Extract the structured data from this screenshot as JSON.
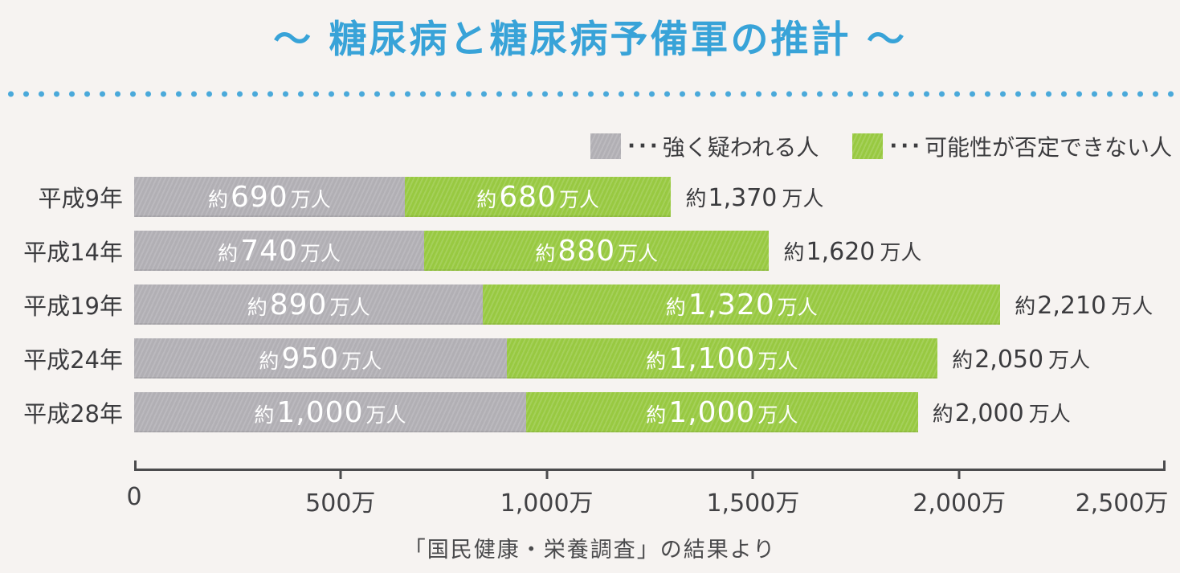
{
  "page": {
    "title": "～ 糖尿病と糖尿病予備軍の推計 ～",
    "title_color": "#38a3d8",
    "divider_dot_color": "#4aa9da",
    "background": "#f6f3f1"
  },
  "legend": [
    {
      "dots": "···",
      "label": "強く疑われる人",
      "color": "#b1afb4"
    },
    {
      "dots": "···",
      "label": "可能性が否定できない人",
      "color": "#98c941"
    }
  ],
  "chart_data": {
    "type": "bar",
    "orientation": "horizontal",
    "stacked": true,
    "title": "糖尿病と糖尿病予備軍の推計",
    "categories": [
      "平成9年",
      "平成14年",
      "平成19年",
      "平成24年",
      "平成28年"
    ],
    "series": [
      {
        "name": "強く疑われる人",
        "color": "#b1afb4",
        "values": [
          690,
          740,
          890,
          950,
          1000
        ]
      },
      {
        "name": "可能性が否定できない人",
        "color": "#98c941",
        "values": [
          680,
          880,
          1320,
          1100,
          1000
        ]
      }
    ],
    "totals": [
      1370,
      1620,
      2210,
      2050,
      2000
    ],
    "unit": "万人",
    "xlim": [
      0,
      2500
    ],
    "x_ticks": [
      "0",
      "500万",
      "1,000万",
      "1,500万",
      "2,000万",
      "2,500万"
    ],
    "grid": false,
    "legend_position": "top-right",
    "source": "「国民健康・栄養調査」の結果より",
    "rows": [
      {
        "year": "平成9年",
        "strong": {
          "prefix": "約",
          "number": "690",
          "suffix": "万人"
        },
        "possible": {
          "prefix": "約",
          "number": "680",
          "suffix": "万人"
        },
        "total": {
          "prefix": "約",
          "number": "1,370",
          "suffix": "万人"
        }
      },
      {
        "year": "平成14年",
        "strong": {
          "prefix": "約",
          "number": "740",
          "suffix": "万人"
        },
        "possible": {
          "prefix": "約",
          "number": "880",
          "suffix": "万人"
        },
        "total": {
          "prefix": "約",
          "number": "1,620",
          "suffix": "万人"
        }
      },
      {
        "year": "平成19年",
        "strong": {
          "prefix": "約",
          "number": "890",
          "suffix": "万人"
        },
        "possible": {
          "prefix": "約",
          "number": "1,320",
          "suffix": "万人"
        },
        "total": {
          "prefix": "約",
          "number": "2,210",
          "suffix": "万人"
        }
      },
      {
        "year": "平成24年",
        "strong": {
          "prefix": "約",
          "number": "950",
          "suffix": "万人"
        },
        "possible": {
          "prefix": "約",
          "number": "1,100",
          "suffix": "万人"
        },
        "total": {
          "prefix": "約",
          "number": "2,050",
          "suffix": "万人"
        }
      },
      {
        "year": "平成28年",
        "strong": {
          "prefix": "約",
          "number": "1,000",
          "suffix": "万人"
        },
        "possible": {
          "prefix": "約",
          "number": "1,000",
          "suffix": "万人"
        },
        "total": {
          "prefix": "約",
          "number": "2,000",
          "suffix": "万人"
        }
      }
    ]
  }
}
